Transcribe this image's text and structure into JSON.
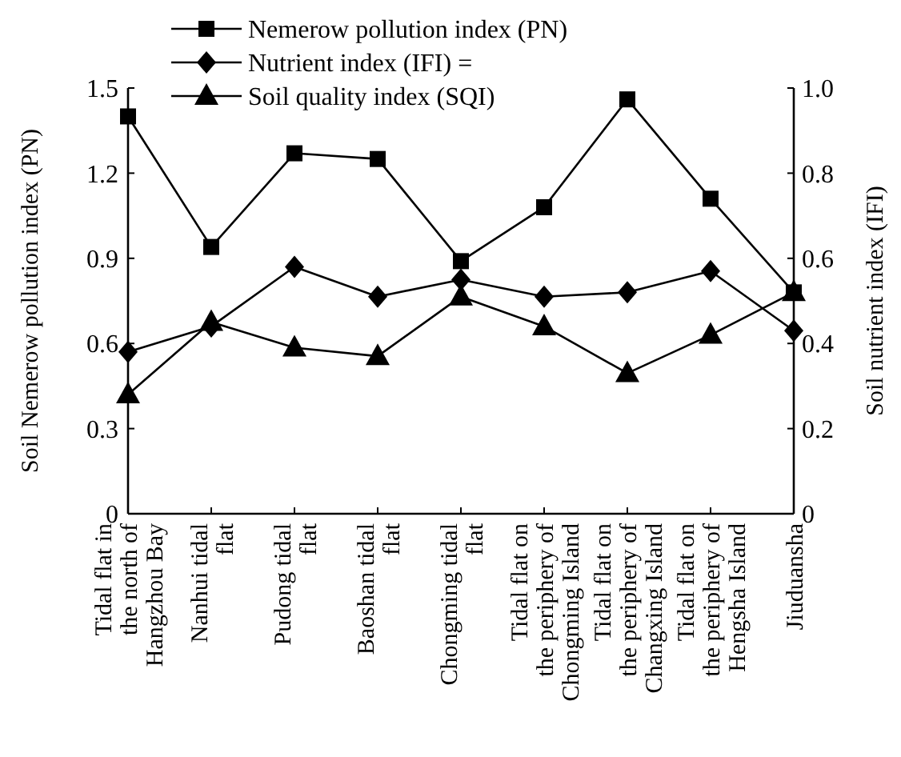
{
  "chart_data": {
    "type": "line",
    "ylabel": "Soil Nemerow pollution index (PN)",
    "y2label": "Soil nutrient index (IFI)",
    "categories": [
      "Tidal flat in the north of Hangzhou Bay",
      "Nanhui tidal flat",
      "Pudong tidal flat",
      "Baoshan tidal flat",
      "Chongming tidal flat",
      "Tidal flat on the periphery of Chongming Island",
      "Tidal flat on the periphery of Changxing Island",
      "Tidal flat on the periphery of Hengsha Island",
      "Jiuduansha"
    ],
    "series": [
      {
        "name": "Nemerow pollution index (PN)",
        "color": "#000000",
        "marker": "square",
        "values": [
          1.4,
          0.94,
          1.27,
          1.25,
          0.89,
          1.08,
          1.46,
          1.11,
          0.78
        ]
      },
      {
        "name": "Nutrient index (IFI) =",
        "color": "#000000",
        "marker": "diamond",
        "axis": "y2",
        "values": [
          0.38,
          0.44,
          0.58,
          0.51,
          0.55,
          0.51,
          0.52,
          0.57,
          0.43
        ]
      },
      {
        "name": "Soil quality index (SQI)",
        "color": "#000000",
        "marker": "triangle",
        "axis": "y2",
        "values": [
          0.28,
          0.45,
          0.39,
          0.37,
          0.51,
          0.44,
          0.33,
          0.42,
          0.52
        ]
      }
    ],
    "ylim": [
      0,
      1.5
    ],
    "yticks": [
      {
        "value": 0,
        "label": "0"
      },
      {
        "value": 0.3,
        "label": "0.3"
      },
      {
        "value": 0.6,
        "label": "0.6"
      },
      {
        "value": 0.9,
        "label": "0.9"
      },
      {
        "value": 1.2,
        "label": "1.2"
      },
      {
        "value": 1.5,
        "label": "1.5"
      }
    ],
    "y2lim": [
      0,
      1
    ],
    "y2ticks": [
      {
        "value": 0,
        "label": "0"
      },
      {
        "value": 0.2,
        "label": "0.2"
      },
      {
        "value": 0.4,
        "label": "0.4"
      },
      {
        "value": 0.6,
        "label": "0.6"
      },
      {
        "value": 0.8,
        "label": "0.8"
      },
      {
        "value": 1,
        "label": "1.0"
      }
    ],
    "grid": false,
    "legend": "top",
    "line_style": "solid"
  }
}
